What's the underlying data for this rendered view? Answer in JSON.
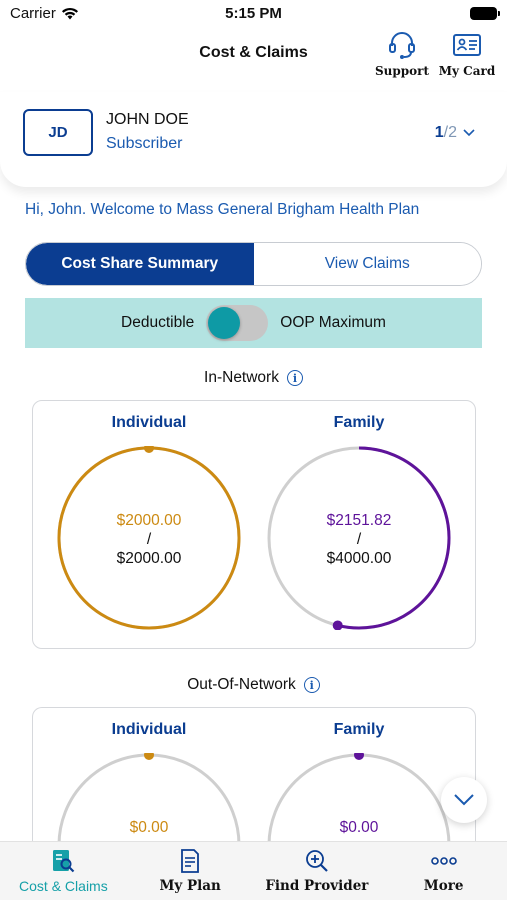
{
  "status": {
    "carrier": "Carrier",
    "time": "5:15 PM"
  },
  "header": {
    "title": "Cost & Claims",
    "support_label": "Support",
    "mycard_label": "My Card"
  },
  "member": {
    "initials": "JD",
    "name": "JOHN DOE",
    "role": "Subscriber",
    "current": "1",
    "total": "/2"
  },
  "welcome": "Hi, John. Welcome to Mass General Brigham Health Plan",
  "tabs": {
    "active": "Cost Share Summary",
    "inactive": "View Claims"
  },
  "toggle": {
    "left_label": "Deductible",
    "right_label": "OOP Maximum",
    "state": "Deductible"
  },
  "in_network": {
    "label": "In-Network",
    "individual": {
      "label": "Individual",
      "spent": "$2000.00",
      "sep": "/",
      "limit": "$2000.00",
      "progress": 1.0,
      "color": "#cc8a12"
    },
    "family": {
      "label": "Family",
      "spent": "$2151.82",
      "sep": "/",
      "limit": "$4000.00",
      "progress": 0.538,
      "color": "#5e139a"
    }
  },
  "out_network": {
    "label": "Out-Of-Network",
    "individual": {
      "label": "Individual",
      "spent": "$0.00",
      "progress": 0.0,
      "color": "#cc8a12"
    },
    "family": {
      "label": "Family",
      "spent": "$0.00",
      "progress": 0.0,
      "color": "#5e139a"
    }
  },
  "tabbar": {
    "items": [
      {
        "label": "Cost & Claims",
        "icon": "claims-icon",
        "active": true
      },
      {
        "label": "My Plan",
        "icon": "document-icon",
        "active": false
      },
      {
        "label": "Find Provider",
        "icon": "search-provider-icon",
        "active": false
      },
      {
        "label": "More",
        "icon": "more-dots-icon",
        "active": false
      }
    ]
  },
  "colors": {
    "brand_blue": "#0b3d91",
    "teal": "#16a0a8",
    "toggle_bg": "#b3e3e1"
  }
}
